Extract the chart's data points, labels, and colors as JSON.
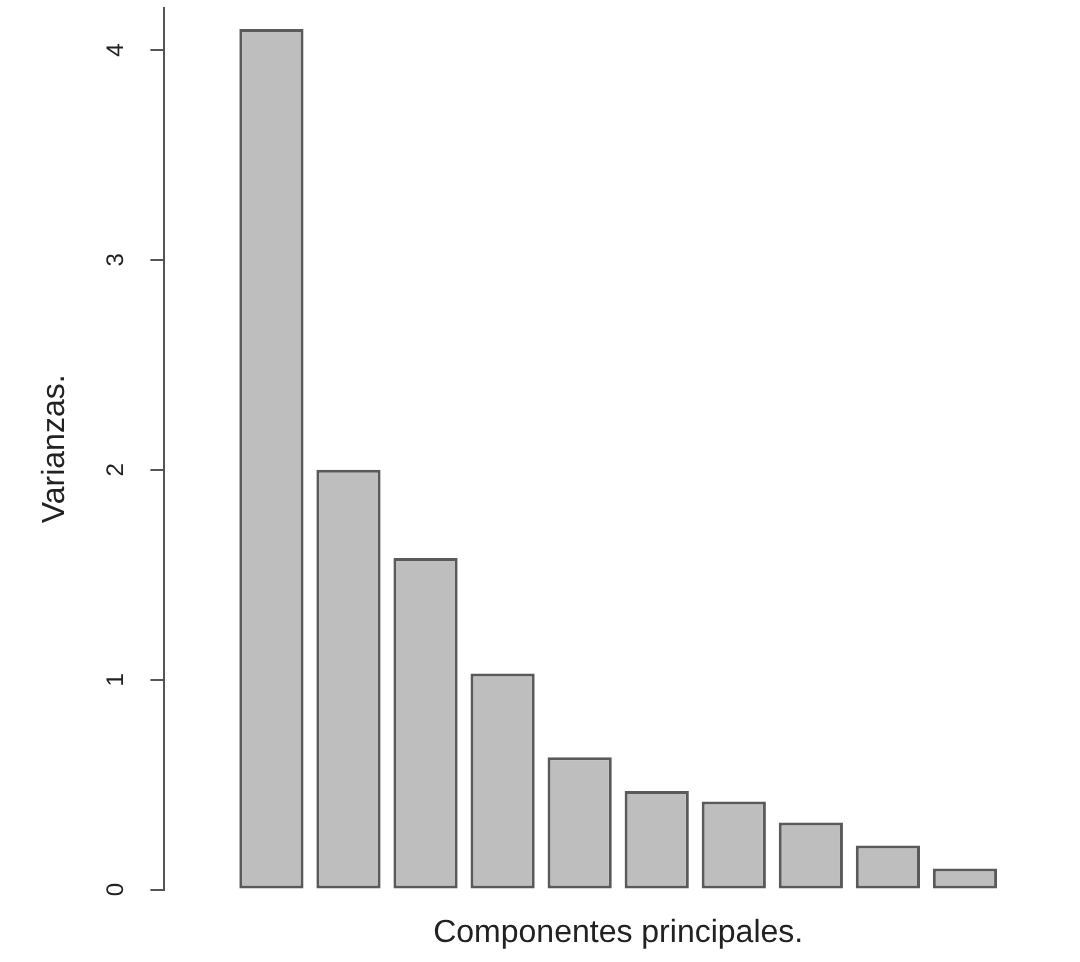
{
  "chart_data": {
    "type": "bar",
    "xlabel": "Componentes principales.",
    "ylabel": "Varianzas.",
    "categories": [
      null,
      null,
      null,
      null,
      null,
      null,
      null,
      null,
      null,
      null
    ],
    "values": [
      4.1,
      2.0,
      1.58,
      1.03,
      0.63,
      0.47,
      0.42,
      0.32,
      0.21,
      0.1
    ],
    "color": "#bebebe",
    "ylim": [
      0,
      4.2
    ],
    "yticks": [
      0,
      1,
      2,
      3,
      4
    ]
  }
}
